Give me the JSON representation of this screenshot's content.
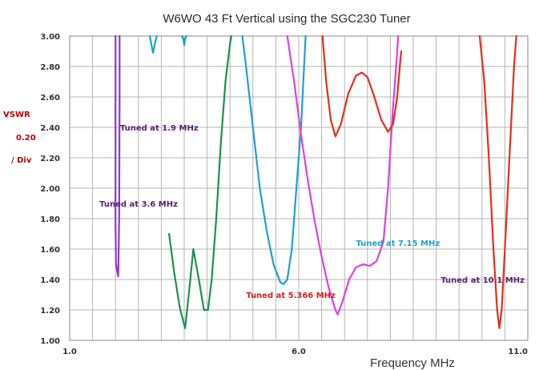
{
  "chart_data": {
    "type": "line",
    "title": "W6WO 43 Ft Vertical using the SGC230 Tuner",
    "xlabel": "Frequency MHz",
    "ylabel_lines": [
      "VSWR",
      "0.20",
      "/ Div"
    ],
    "ylabel_color": "#c00000",
    "xlim": [
      1.0,
      11.0
    ],
    "ylim": [
      1.0,
      3.0
    ],
    "x_ticks": [
      "1.0",
      "6.0",
      "11.0"
    ],
    "x_tick_values": [
      1.0,
      6.0,
      11.0
    ],
    "y_ticks": [
      "1.00",
      "1.20",
      "1.40",
      "1.60",
      "1.80",
      "2.00",
      "2.20",
      "2.40",
      "2.60",
      "2.80",
      "3.00"
    ],
    "y_tick_values": [
      1.0,
      1.2,
      1.4,
      1.6,
      1.8,
      2.0,
      2.2,
      2.4,
      2.6,
      2.8,
      3.0
    ],
    "grid": true,
    "series": [
      {
        "name": "Tuned at 1.9 MHz",
        "color": "#8c3cc8",
        "points": [
          [
            2.0,
            3.0
          ],
          [
            2.0,
            2.6
          ],
          [
            2.0,
            2.2
          ],
          [
            2.0,
            1.8
          ],
          [
            2.01,
            1.5
          ],
          [
            2.04,
            1.45
          ],
          [
            2.06,
            1.42
          ],
          [
            2.08,
            1.8
          ],
          [
            2.09,
            2.6
          ],
          [
            2.09,
            3.0
          ]
        ]
      },
      {
        "name": "",
        "color": "#1fa0d0",
        "points": [
          [
            2.75,
            3.0
          ],
          [
            2.78,
            2.95
          ],
          [
            2.82,
            2.89
          ],
          [
            2.86,
            2.95
          ],
          [
            2.9,
            3.0
          ]
        ]
      },
      {
        "name": "",
        "color": "#1fa0d0",
        "points": [
          [
            3.45,
            3.0
          ],
          [
            3.48,
            2.98
          ],
          [
            3.5,
            2.94
          ],
          [
            3.52,
            2.98
          ],
          [
            3.55,
            3.0
          ]
        ]
      },
      {
        "name": "Tuned at 3.6 MHz",
        "color": "#1e9050",
        "points": [
          [
            3.17,
            1.7
          ],
          [
            3.28,
            1.45
          ],
          [
            3.4,
            1.22
          ],
          [
            3.52,
            1.08
          ],
          [
            3.6,
            1.3
          ],
          [
            3.7,
            1.6
          ],
          [
            3.82,
            1.4
          ],
          [
            3.93,
            1.2
          ],
          [
            4.02,
            1.2
          ],
          [
            4.1,
            1.4
          ],
          [
            4.2,
            1.8
          ],
          [
            4.3,
            2.3
          ],
          [
            4.4,
            2.7
          ],
          [
            4.5,
            2.95
          ],
          [
            4.53,
            3.0
          ]
        ]
      },
      {
        "name": "Tuned at 5.366 MHz",
        "color": "#1fa0d0",
        "points": [
          [
            4.77,
            3.0
          ],
          [
            4.85,
            2.8
          ],
          [
            5.0,
            2.4
          ],
          [
            5.15,
            2.0
          ],
          [
            5.3,
            1.72
          ],
          [
            5.45,
            1.5
          ],
          [
            5.6,
            1.38
          ],
          [
            5.67,
            1.37
          ],
          [
            5.75,
            1.4
          ],
          [
            5.85,
            1.6
          ],
          [
            5.95,
            2.0
          ],
          [
            6.05,
            2.4
          ],
          [
            6.1,
            2.7
          ],
          [
            6.15,
            3.0
          ]
        ]
      },
      {
        "name": "Tuned at 7.15 MHz",
        "color": "#e040e0",
        "points": [
          [
            5.75,
            3.0
          ],
          [
            5.9,
            2.7
          ],
          [
            6.05,
            2.35
          ],
          [
            6.2,
            2.05
          ],
          [
            6.35,
            1.78
          ],
          [
            6.5,
            1.55
          ],
          [
            6.65,
            1.35
          ],
          [
            6.8,
            1.2
          ],
          [
            6.85,
            1.17
          ],
          [
            6.95,
            1.25
          ],
          [
            7.1,
            1.4
          ],
          [
            7.25,
            1.48
          ],
          [
            7.4,
            1.5
          ],
          [
            7.55,
            1.49
          ],
          [
            7.7,
            1.52
          ],
          [
            7.85,
            1.65
          ],
          [
            7.95,
            2.0
          ],
          [
            8.05,
            2.5
          ],
          [
            8.15,
            2.9
          ],
          [
            8.17,
            3.0
          ]
        ]
      },
      {
        "name": "",
        "color": "#e03020",
        "points": [
          [
            6.52,
            3.0
          ],
          [
            6.6,
            2.7
          ],
          [
            6.7,
            2.45
          ],
          [
            6.8,
            2.34
          ],
          [
            6.92,
            2.42
          ],
          [
            7.08,
            2.62
          ],
          [
            7.25,
            2.74
          ],
          [
            7.38,
            2.76
          ],
          [
            7.5,
            2.73
          ],
          [
            7.65,
            2.6
          ],
          [
            7.8,
            2.45
          ],
          [
            7.95,
            2.37
          ],
          [
            8.06,
            2.42
          ],
          [
            8.15,
            2.6
          ],
          [
            8.22,
            2.85
          ],
          [
            8.24,
            2.9
          ]
        ]
      },
      {
        "name": "Tuned at 10.1 MHz",
        "color": "#e03020",
        "points": [
          [
            9.95,
            3.0
          ],
          [
            10.05,
            2.7
          ],
          [
            10.15,
            2.2
          ],
          [
            10.25,
            1.6
          ],
          [
            10.33,
            1.2
          ],
          [
            10.38,
            1.08
          ],
          [
            10.43,
            1.2
          ],
          [
            10.5,
            1.6
          ],
          [
            10.6,
            2.2
          ],
          [
            10.7,
            2.8
          ],
          [
            10.75,
            3.0
          ]
        ]
      }
    ],
    "annotations": [
      {
        "text": "Tuned at 1.9 MHz",
        "x": 2.1,
        "y": 2.38,
        "color": "#5a2070"
      },
      {
        "text": "Tuned at 3.6 MHz",
        "x": 1.65,
        "y": 1.88,
        "color": "#5a2070"
      },
      {
        "text": "Tuned at 5.366 MHz",
        "x": 4.85,
        "y": 1.28,
        "color": "#d02020"
      },
      {
        "text": "Tuned at 7.15 MHz",
        "x": 7.25,
        "y": 1.62,
        "color": "#1fa0d0"
      },
      {
        "text": "Tuned at 10.1 MHz",
        "x": 9.1,
        "y": 1.38,
        "color": "#5a2070"
      }
    ]
  }
}
